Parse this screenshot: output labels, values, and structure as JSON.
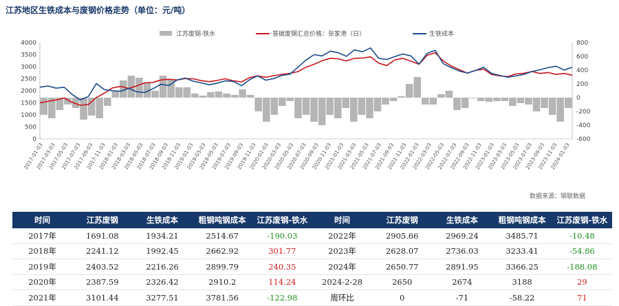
{
  "title": "江苏地区生铁成本与废钢价格走势（单位：元/吨）",
  "source": "数据来源：钢联数据",
  "chart_data": {
    "type": "line+bar",
    "legend": [
      "江苏废钢-铁水",
      "普碳废钢汇总价格：张家港（日）",
      "生铁成本"
    ],
    "legend_position": "top",
    "colors": {
      "bar": "#b5b5b5",
      "scrap": "#c8161d",
      "pig_iron": "#1a4a8c"
    },
    "y_left": {
      "min": 0,
      "max": 4000,
      "ticks": [
        0,
        500,
        1000,
        1500,
        2000,
        2500,
        3000,
        3500,
        4000
      ]
    },
    "y_right": {
      "min": -600,
      "max": 800,
      "ticks": [
        -600,
        -400,
        -200,
        0,
        200,
        400,
        600,
        800
      ]
    },
    "x_ticks": [
      "2017-01-03",
      "2017-03-03",
      "2017-05-03",
      "2017-07-03",
      "2017-09-03",
      "2017-11-03",
      "2018-01-03",
      "2018-03-03",
      "2018-05-03",
      "2018-07-03",
      "2018-09-03",
      "2018-11-03",
      "2019-01-03",
      "2019-03-03",
      "2019-05-03",
      "2019-07-03",
      "2019-09-03",
      "2019-11-03",
      "2020-01-03",
      "2020-03-03",
      "2020-05-03",
      "2020-07-03",
      "2020-09-03",
      "2020-11-03",
      "2021-01-03",
      "2021-03-03",
      "2021-05-03",
      "2021-07-03",
      "2021-09-03",
      "2021-11-03",
      "2022-01-03",
      "2022-03-03",
      "2022-05-03",
      "2022-07-03",
      "2022-09-03",
      "2022-11-03",
      "2023-01-03",
      "2023-03-03",
      "2023-05-03",
      "2023-07-03",
      "2023-09-03",
      "2023-11-03",
      "2024-01-03"
    ],
    "scrap_series": [
      1500,
      1560,
      1620,
      1700,
      1520,
      1400,
      1430,
      1720,
      1900,
      2120,
      2180,
      2100,
      2200,
      2330,
      2350,
      2450,
      2480,
      2450,
      2510,
      2500,
      2420,
      2380,
      2430,
      2500,
      2410,
      2370,
      2550,
      2620,
      2560,
      2630,
      2680,
      2720,
      2800,
      2980,
      3100,
      3250,
      3350,
      3330,
      3240,
      3350,
      3360,
      3410,
      3150,
      3050,
      3280,
      3350,
      3230,
      3100,
      3470,
      3580,
      3240,
      3030,
      2880,
      2730,
      2850,
      2900,
      2680,
      2620,
      2590,
      2700,
      2730,
      2800,
      2720,
      2760,
      2680,
      2720,
      2650
    ],
    "pig_iron_series": [
      2150,
      2200,
      2110,
      2150,
      1850,
      1620,
      1760,
      2300,
      2050,
      2000,
      1980,
      2100,
      1960,
      1930,
      2080,
      2270,
      2220,
      2450,
      2530,
      2400,
      2330,
      2250,
      2320,
      2410,
      2390,
      2210,
      2460,
      2620,
      2440,
      2510,
      2640,
      2690,
      2980,
      3280,
      3500,
      3450,
      3650,
      3580,
      3430,
      3700,
      3620,
      3780,
      3350,
      3300,
      3420,
      3530,
      3450,
      3110,
      3550,
      3680,
      3130,
      2960,
      2820,
      2740,
      2840,
      2980,
      2720,
      2640,
      2560,
      2620,
      2680,
      2800,
      2870,
      2960,
      3020,
      2860,
      2980
    ],
    "diff_bars": [
      -250,
      -300,
      -180,
      -100,
      -150,
      -320,
      -260,
      -300,
      -120,
      100,
      250,
      320,
      290,
      220,
      100,
      320,
      260,
      150,
      150,
      60,
      30,
      80,
      90,
      60,
      40,
      120,
      40,
      -200,
      -350,
      -250,
      -120,
      -50,
      -300,
      -250,
      -350,
      -400,
      -250,
      -300,
      -150,
      -350,
      -250,
      -300,
      -200,
      -100,
      -50,
      20,
      200,
      300,
      -100,
      -100,
      50,
      100,
      -180,
      -150,
      -10,
      -50,
      -60,
      -50,
      -50,
      -120,
      -80,
      -100,
      -200,
      -150,
      -250,
      -350,
      -150
    ]
  },
  "table": {
    "headers": [
      "时间",
      "江苏废钢",
      "生铁成本",
      "粗钢吨钢成本",
      "江苏废钢-铁水",
      "时间",
      "江苏废钢",
      "生铁成本",
      "粗钢吨钢成本",
      "江苏废钢-铁水"
    ],
    "rows": [
      [
        "2017年",
        "1691.08",
        "1934.21",
        "2514.67",
        "-190.03",
        "2022年",
        "2905.66",
        "2969.24",
        "3485.71",
        "-10.48"
      ],
      [
        "2018年",
        "2241.12",
        "1992.45",
        "2662.92",
        "301.77",
        "2023年",
        "2628.07",
        "2736.03",
        "3233.41",
        "-54.86"
      ],
      [
        "2019年",
        "2403.52",
        "2216.26",
        "2899.79",
        "240.35",
        "2024年",
        "2650.77",
        "2891.95",
        "3366.25",
        "-188.08"
      ],
      [
        "2020年",
        "2387.59",
        "2326.42",
        "2910.2",
        "114.24",
        "2024-2-28",
        "2650",
        "2674",
        "3188",
        "29"
      ],
      [
        "2021年",
        "3101.44",
        "3277.51",
        "3781.56",
        "-122.98",
        "周环比",
        "0",
        "-71",
        "-58.22",
        "71"
      ]
    ]
  }
}
